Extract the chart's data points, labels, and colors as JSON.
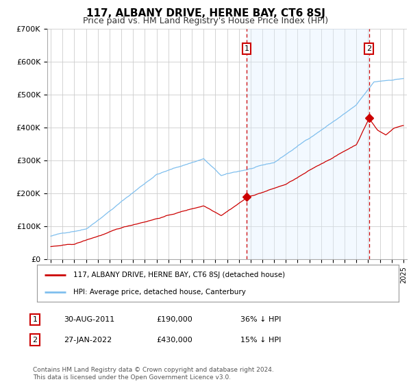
{
  "title": "117, ALBANY DRIVE, HERNE BAY, CT6 8SJ",
  "subtitle": "Price paid vs. HM Land Registry's House Price Index (HPI)",
  "background_color": "#ffffff",
  "plot_bg_color": "#ffffff",
  "grid_color": "#cccccc",
  "ylim": [
    0,
    700000
  ],
  "yticks": [
    0,
    100000,
    200000,
    300000,
    400000,
    500000,
    600000,
    700000
  ],
  "ytick_labels": [
    "£0",
    "£100K",
    "£200K",
    "£300K",
    "£400K",
    "£500K",
    "£600K",
    "£700K"
  ],
  "x_start_year": 1995,
  "x_end_year": 2025,
  "sale1_year": 2011.667,
  "sale1_price": 190000,
  "sale2_year": 2022.083,
  "sale2_price": 430000,
  "legend_line1": "117, ALBANY DRIVE, HERNE BAY, CT6 8SJ (detached house)",
  "legend_line2": "HPI: Average price, detached house, Canterbury",
  "footer1": "Contains HM Land Registry data © Crown copyright and database right 2024.",
  "footer2": "This data is licensed under the Open Government Licence v3.0.",
  "table_row1_num": "1",
  "table_row1_date": "30-AUG-2011",
  "table_row1_price": "£190,000",
  "table_row1_hpi": "36% ↓ HPI",
  "table_row2_num": "2",
  "table_row2_date": "27-JAN-2022",
  "table_row2_price": "£430,000",
  "table_row2_hpi": "15% ↓ HPI",
  "hpi_color": "#7fbfee",
  "hpi_fill_color": "#ddeeff",
  "price_color": "#cc0000",
  "vline_color": "#cc0000",
  "marker_box_color": "#cc0000",
  "shade_alpha": 0.35
}
